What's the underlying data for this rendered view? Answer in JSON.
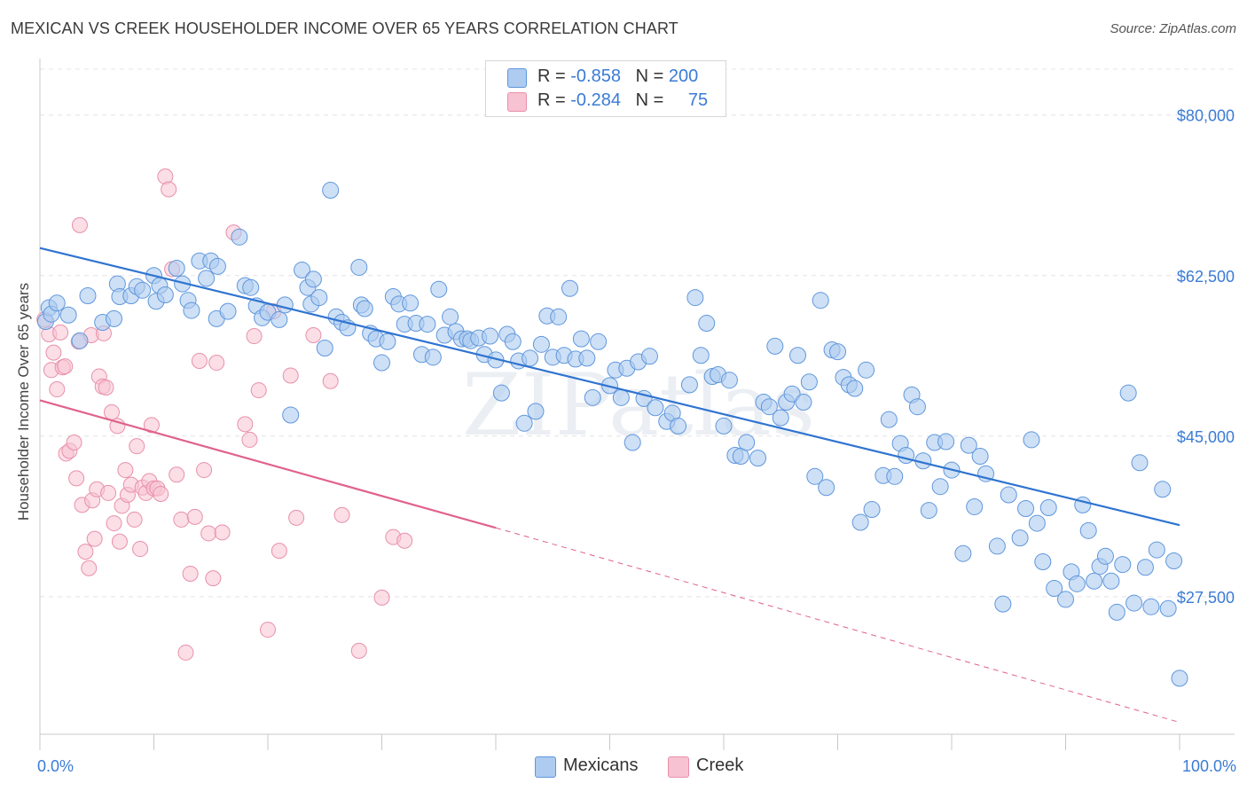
{
  "header": {
    "title": "MEXICAN VS CREEK HOUSEHOLDER INCOME OVER 65 YEARS CORRELATION CHART",
    "source": "Source: ZipAtlas.com"
  },
  "legend_box": {
    "rows": [
      {
        "r_label": "R = ",
        "r_value": "-0.858",
        "n_label": "N = ",
        "n_value": "200"
      },
      {
        "r_label": "R = ",
        "r_value": "-0.284",
        "n_label": "N = ",
        "n_value": "75"
      }
    ]
  },
  "bottom_legend": {
    "mexicans": "Mexicans",
    "creek": "Creek"
  },
  "watermark": "ZIPatlas",
  "colors": {
    "mexicans_fill": "#aecbf0",
    "mexicans_stroke": "#5f97dc",
    "mexicans_line": "#2f74d0",
    "creek_fill": "#f7c2d2",
    "creek_stroke": "#e890ab",
    "creek_line": "#e0628a",
    "value_text": "#3a7bd5",
    "grid": "#e4e4e4"
  },
  "chart_data": {
    "type": "scatter",
    "title": "MEXICAN VS CREEK HOUSEHOLDER INCOME OVER 65 YEARS CORRELATION CHART",
    "xlabel": "",
    "ylabel": "Householder Income Over 65 years",
    "xlim": [
      0,
      100
    ],
    "ylim": [
      12500,
      85000
    ],
    "x_tick_labels": [
      "0.0%",
      "100.0%"
    ],
    "y_ticks": [
      27500,
      45000,
      62500,
      80000
    ],
    "y_tick_labels": [
      "$27,500",
      "$45,000",
      "$62,500",
      "$80,000"
    ],
    "grid": true,
    "legend": "top-center",
    "series": [
      {
        "name": "Mexicans",
        "R": -0.858,
        "N": 200,
        "trend": {
          "x": [
            0,
            100
          ],
          "y": [
            65500,
            35300
          ]
        },
        "points": [
          [
            0.5,
            57.5
          ],
          [
            0.8,
            59
          ],
          [
            1,
            58.3
          ],
          [
            1.5,
            59.5
          ],
          [
            2.5,
            58.2
          ],
          [
            3.5,
            55.4
          ],
          [
            4.2,
            60.3
          ],
          [
            5.5,
            57.4
          ],
          [
            6.5,
            57.8
          ],
          [
            6.8,
            61.6
          ],
          [
            7,
            60.2
          ],
          [
            8,
            60.3
          ],
          [
            8.5,
            61.3
          ],
          [
            9,
            60.9
          ],
          [
            10,
            62.5
          ],
          [
            10.2,
            59.7
          ],
          [
            10.5,
            61.4
          ],
          [
            11,
            60.4
          ],
          [
            12,
            63.3
          ],
          [
            12.5,
            61.6
          ],
          [
            13,
            59.8
          ],
          [
            13.3,
            58.7
          ],
          [
            14,
            64.1
          ],
          [
            14.6,
            62.2
          ],
          [
            15,
            64.1
          ],
          [
            15.5,
            57.8
          ],
          [
            15.6,
            63.5
          ],
          [
            16.5,
            58.6
          ],
          [
            17.5,
            66.7
          ],
          [
            18,
            61.4
          ],
          [
            18.5,
            61.2
          ],
          [
            19,
            59.2
          ],
          [
            19.5,
            57.9
          ],
          [
            20,
            58.5
          ],
          [
            21,
            57.7
          ],
          [
            21.5,
            59.3
          ],
          [
            22,
            47.3
          ],
          [
            23,
            63.1
          ],
          [
            23.5,
            61.2
          ],
          [
            23.8,
            59.4
          ],
          [
            24,
            62.1
          ],
          [
            24.5,
            60.1
          ],
          [
            25,
            54.6
          ],
          [
            25.5,
            71.8
          ],
          [
            26,
            58
          ],
          [
            26.5,
            57.4
          ],
          [
            27,
            56.8
          ],
          [
            28,
            63.4
          ],
          [
            28.2,
            59.3
          ],
          [
            28.5,
            58.9
          ],
          [
            29,
            56.2
          ],
          [
            29.5,
            55.6
          ],
          [
            30,
            53
          ],
          [
            30.5,
            55.3
          ],
          [
            31,
            60.2
          ],
          [
            31.5,
            59.4
          ],
          [
            32,
            57.2
          ],
          [
            32.5,
            59.5
          ],
          [
            33,
            57.3
          ],
          [
            33.5,
            53.9
          ],
          [
            34,
            57.2
          ],
          [
            34.5,
            53.6
          ],
          [
            35,
            61
          ],
          [
            35.5,
            56
          ],
          [
            36,
            58
          ],
          [
            36.5,
            56.4
          ],
          [
            37,
            55.6
          ],
          [
            37.5,
            55.6
          ],
          [
            37.8,
            55.4
          ],
          [
            38.5,
            55.7
          ],
          [
            39,
            53.9
          ],
          [
            39.5,
            55.9
          ],
          [
            40,
            53.3
          ],
          [
            40.5,
            49.7
          ],
          [
            41,
            56.1
          ],
          [
            41.5,
            55.3
          ],
          [
            42,
            53.2
          ],
          [
            42.5,
            46.4
          ],
          [
            43,
            53.5
          ],
          [
            43.5,
            47.7
          ],
          [
            44,
            55
          ],
          [
            44.5,
            58.1
          ],
          [
            45,
            53.6
          ],
          [
            45.5,
            58
          ],
          [
            46,
            53.8
          ],
          [
            46.5,
            61.1
          ],
          [
            47,
            53.4
          ],
          [
            47.5,
            55.6
          ],
          [
            48,
            53.5
          ],
          [
            48.5,
            49.2
          ],
          [
            49,
            55.3
          ],
          [
            50,
            50.5
          ],
          [
            50.5,
            52.2
          ],
          [
            51,
            49.2
          ],
          [
            51.5,
            52.4
          ],
          [
            52,
            44.3
          ],
          [
            52.5,
            53.1
          ],
          [
            53,
            49.1
          ],
          [
            53.5,
            53.7
          ],
          [
            54,
            48.1
          ],
          [
            55,
            46.6
          ],
          [
            55.5,
            47.5
          ],
          [
            56,
            46.1
          ],
          [
            57,
            50.6
          ],
          [
            57.5,
            60.1
          ],
          [
            58,
            53.8
          ],
          [
            58.5,
            57.3
          ],
          [
            59,
            51.5
          ],
          [
            59.5,
            51.7
          ],
          [
            60,
            46.1
          ],
          [
            60.5,
            51.1
          ],
          [
            61,
            42.9
          ],
          [
            61.5,
            42.8
          ],
          [
            62,
            44.3
          ],
          [
            63,
            42.6
          ],
          [
            63.5,
            48.7
          ],
          [
            64,
            48.2
          ],
          [
            64.5,
            54.8
          ],
          [
            65,
            47
          ],
          [
            65.5,
            48.7
          ],
          [
            66,
            49.6
          ],
          [
            66.5,
            53.8
          ],
          [
            67,
            48.7
          ],
          [
            67.5,
            50.9
          ],
          [
            68,
            40.6
          ],
          [
            68.5,
            59.8
          ],
          [
            69,
            39.4
          ],
          [
            69.5,
            54.4
          ],
          [
            70,
            54.2
          ],
          [
            70.5,
            51.4
          ],
          [
            71,
            50.6
          ],
          [
            71.5,
            50.2
          ],
          [
            72,
            35.6
          ],
          [
            72.5,
            52.2
          ],
          [
            73,
            37
          ],
          [
            74,
            40.7
          ],
          [
            74.5,
            46.8
          ],
          [
            75,
            40.6
          ],
          [
            75.5,
            44.2
          ],
          [
            76,
            42.9
          ],
          [
            76.5,
            49.5
          ],
          [
            77,
            48.2
          ],
          [
            77.5,
            42.3
          ],
          [
            78,
            36.9
          ],
          [
            78.5,
            44.3
          ],
          [
            79,
            39.5
          ],
          [
            79.5,
            44.4
          ],
          [
            80,
            41.3
          ],
          [
            81,
            32.2
          ],
          [
            81.5,
            44
          ],
          [
            82,
            37.3
          ],
          [
            82.5,
            42.8
          ],
          [
            83,
            40.9
          ],
          [
            84,
            33
          ],
          [
            84.5,
            26.7
          ],
          [
            85,
            38.6
          ],
          [
            86,
            33.9
          ],
          [
            86.5,
            37.1
          ],
          [
            87,
            44.6
          ],
          [
            87.5,
            35.5
          ],
          [
            88,
            31.3
          ],
          [
            88.5,
            37.2
          ],
          [
            89,
            28.4
          ],
          [
            90,
            27.2
          ],
          [
            90.5,
            30.2
          ],
          [
            91,
            28.9
          ],
          [
            91.5,
            37.5
          ],
          [
            92,
            34.7
          ],
          [
            92.5,
            29.2
          ],
          [
            93,
            30.8
          ],
          [
            93.5,
            31.9
          ],
          [
            94,
            29.2
          ],
          [
            94.5,
            25.8
          ],
          [
            95,
            31
          ],
          [
            95.5,
            49.7
          ],
          [
            96,
            26.8
          ],
          [
            96.5,
            42.1
          ],
          [
            97,
            30.7
          ],
          [
            97.5,
            26.4
          ],
          [
            98,
            32.6
          ],
          [
            98.5,
            39.2
          ],
          [
            99,
            26.2
          ],
          [
            99.5,
            31.4
          ],
          [
            100,
            18.6
          ]
        ]
      },
      {
        "name": "Creek",
        "R": -0.284,
        "N": 75,
        "trend": {
          "x": [
            0,
            40
          ],
          "y": [
            48900,
            35000
          ],
          "dashed_to": {
            "x": 100,
            "y": 13800
          }
        },
        "points": [
          [
            0.4,
            57.7
          ],
          [
            0.8,
            56.1
          ],
          [
            1,
            52.2
          ],
          [
            1.2,
            54.1
          ],
          [
            1.5,
            50.1
          ],
          [
            1.8,
            56.3
          ],
          [
            2,
            52.5
          ],
          [
            2.2,
            52.6
          ],
          [
            2.3,
            43.1
          ],
          [
            2.6,
            43.4
          ],
          [
            3,
            44.3
          ],
          [
            3.2,
            40.4
          ],
          [
            3.4,
            55.3
          ],
          [
            3.5,
            68
          ],
          [
            3.7,
            37.5
          ],
          [
            4,
            32.4
          ],
          [
            4.3,
            30.6
          ],
          [
            4.5,
            56
          ],
          [
            4.6,
            38
          ],
          [
            4.8,
            33.8
          ],
          [
            5,
            39.2
          ],
          [
            5.2,
            51.5
          ],
          [
            5.5,
            50.4
          ],
          [
            5.6,
            56.2
          ],
          [
            5.8,
            50.3
          ],
          [
            6,
            38.8
          ],
          [
            6.3,
            47.6
          ],
          [
            6.5,
            35.5
          ],
          [
            6.8,
            46.1
          ],
          [
            7,
            33.5
          ],
          [
            7.2,
            37.4
          ],
          [
            7.5,
            41.3
          ],
          [
            7.7,
            38.6
          ],
          [
            8,
            39.7
          ],
          [
            8.3,
            35.9
          ],
          [
            8.5,
            43.9
          ],
          [
            8.8,
            32.7
          ],
          [
            9,
            39.4
          ],
          [
            9.3,
            38.8
          ],
          [
            9.6,
            40.1
          ],
          [
            9.8,
            46.2
          ],
          [
            10,
            39.3
          ],
          [
            10.3,
            39.3
          ],
          [
            10.6,
            38.7
          ],
          [
            11,
            73.3
          ],
          [
            11.3,
            71.9
          ],
          [
            11.6,
            63.2
          ],
          [
            12,
            40.8
          ],
          [
            12.4,
            35.9
          ],
          [
            12.8,
            21.4
          ],
          [
            13.2,
            30
          ],
          [
            13.6,
            36.2
          ],
          [
            14,
            53.2
          ],
          [
            14.4,
            41.3
          ],
          [
            14.8,
            34.4
          ],
          [
            15.2,
            29.5
          ],
          [
            15.5,
            53
          ],
          [
            16,
            34.5
          ],
          [
            17,
            67.2
          ],
          [
            18,
            46.3
          ],
          [
            18.4,
            44.6
          ],
          [
            18.8,
            55.9
          ],
          [
            19.2,
            50
          ],
          [
            20,
            23.9
          ],
          [
            20.5,
            58.6
          ],
          [
            21,
            32.5
          ],
          [
            22,
            51.6
          ],
          [
            22.5,
            36.1
          ],
          [
            24,
            56
          ],
          [
            25.5,
            51
          ],
          [
            26.5,
            36.4
          ],
          [
            28,
            21.6
          ],
          [
            30,
            27.4
          ],
          [
            31,
            34
          ],
          [
            32,
            33.6
          ]
        ]
      }
    ]
  }
}
